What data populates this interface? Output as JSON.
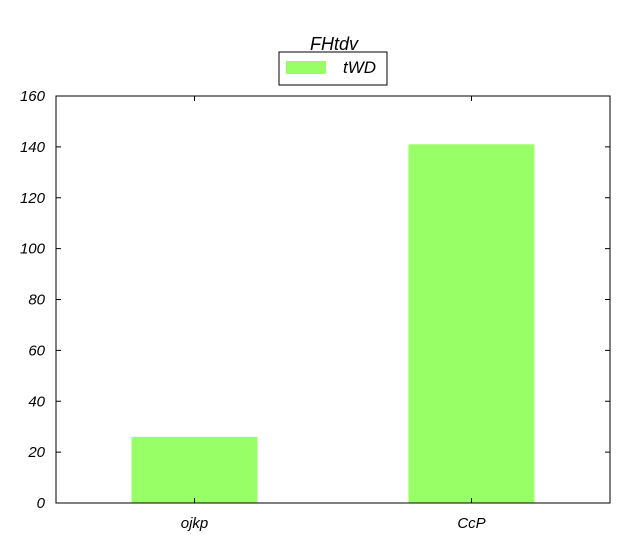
{
  "chart_data": {
    "type": "bar",
    "title": "FHtdv",
    "xlabel": "",
    "ylabel": "",
    "categories": [
      "ojkp",
      "CcP"
    ],
    "series": [
      {
        "name": "tWD",
        "values": [
          26,
          141
        ],
        "color": "#99ff66"
      }
    ],
    "ylim": [
      0,
      160
    ],
    "yticks": [
      0,
      20,
      40,
      60,
      80,
      100,
      120,
      140,
      160
    ],
    "grid": false,
    "legend_position": "top-center"
  }
}
